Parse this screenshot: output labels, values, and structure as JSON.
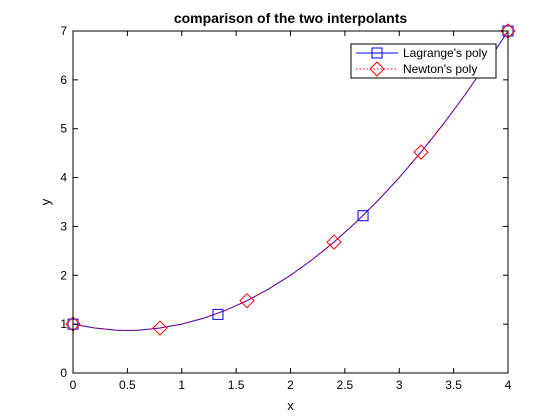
{
  "chart_data": {
    "type": "line",
    "title": "comparison of the two interpolants",
    "xlabel": "x",
    "ylabel": "y",
    "xlim": [
      0,
      4
    ],
    "ylim": [
      0,
      7
    ],
    "xticks": [
      "0",
      "0.5",
      "1",
      "1.5",
      "2",
      "2.5",
      "3",
      "3.5",
      "4"
    ],
    "yticks": [
      "0",
      "1",
      "2",
      "3",
      "4",
      "5",
      "6",
      "7"
    ],
    "grid": false,
    "legend_position": "top-right",
    "series": [
      {
        "name": "Lagrange's poly",
        "color": "#0000ff",
        "line_style": "solid",
        "marker": "square",
        "x": [
          0,
          1.333,
          2.667,
          4
        ],
        "y": [
          1.0,
          1.2,
          3.22,
          7.0
        ],
        "curve_x": [
          0,
          0.2,
          0.4,
          0.5,
          0.6,
          0.8,
          1.0,
          1.2,
          1.4,
          1.6,
          1.8,
          2.0,
          2.2,
          2.4,
          2.6,
          2.8,
          3.0,
          3.2,
          3.4,
          3.6,
          3.8,
          4.0
        ],
        "curve_y": [
          1.0,
          0.92,
          0.875,
          0.87,
          0.875,
          0.92,
          1.0,
          1.12,
          1.28,
          1.48,
          1.72,
          2.0,
          2.32,
          2.68,
          3.08,
          3.52,
          4.0,
          4.52,
          5.08,
          5.68,
          6.32,
          7.0
        ]
      },
      {
        "name": "Newton's poly",
        "color": "#ff0000",
        "line_style": "dotted",
        "marker": "diamond",
        "x": [
          0,
          0.8,
          1.6,
          2.4,
          3.2,
          4
        ],
        "y": [
          1.0,
          0.92,
          1.48,
          2.68,
          4.52,
          7.0
        ],
        "curve_x": [
          0,
          0.2,
          0.4,
          0.5,
          0.6,
          0.8,
          1.0,
          1.2,
          1.4,
          1.6,
          1.8,
          2.0,
          2.2,
          2.4,
          2.6,
          2.8,
          3.0,
          3.2,
          3.4,
          3.6,
          3.8,
          4.0
        ],
        "curve_y": [
          1.0,
          0.92,
          0.875,
          0.87,
          0.875,
          0.92,
          1.0,
          1.12,
          1.28,
          1.48,
          1.72,
          2.0,
          2.32,
          2.68,
          3.08,
          3.52,
          4.0,
          4.52,
          5.08,
          5.68,
          6.32,
          7.0
        ]
      }
    ]
  }
}
